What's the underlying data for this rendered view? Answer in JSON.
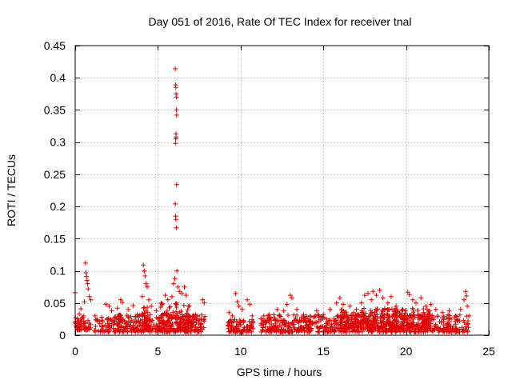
{
  "chart_data": {
    "type": "scatter",
    "title": "Day 051 of 2016, Rate Of TEC Index for receiver tnal",
    "xlabel": "GPS time / hours",
    "ylabel": "ROTI / TECUs",
    "xlim": [
      0,
      25
    ],
    "ylim": [
      0,
      0.45
    ],
    "xticks": [
      0,
      5,
      10,
      15,
      20,
      25
    ],
    "xtick_labels": [
      "0",
      "5",
      "10",
      "15",
      "20",
      "25"
    ],
    "yticks": [
      0,
      0.05,
      0.1,
      0.15,
      0.2,
      0.25,
      0.3,
      0.35,
      0.4,
      0.45
    ],
    "ytick_labels": [
      "0",
      "0.05",
      "0.1",
      "0.15",
      "0.2",
      "0.25",
      "0.3",
      "0.35",
      "0.4",
      "0.45"
    ],
    "grid": true,
    "marker": "+",
    "marker_color": "#e00000",
    "data_gaps_hours": [
      [
        7.9,
        9.2
      ],
      [
        10.8,
        11.2
      ]
    ],
    "series": [
      {
        "name": "ROTI",
        "points": [
          [
            0.0,
            0.066
          ],
          [
            0.05,
            0.018
          ],
          [
            0.15,
            0.025
          ],
          [
            0.25,
            0.033
          ],
          [
            0.35,
            0.041
          ],
          [
            0.45,
            0.028
          ],
          [
            0.55,
            0.052
          ],
          [
            0.62,
            0.112
          ],
          [
            0.65,
            0.097
          ],
          [
            0.68,
            0.091
          ],
          [
            0.72,
            0.085
          ],
          [
            0.75,
            0.08
          ],
          [
            0.78,
            0.072
          ],
          [
            0.85,
            0.06
          ],
          [
            0.95,
            0.055
          ],
          [
            1.2,
            0.03
          ],
          [
            1.6,
            0.028
          ],
          [
            1.85,
            0.048
          ],
          [
            2.05,
            0.045
          ],
          [
            2.2,
            0.038
          ],
          [
            2.55,
            0.042
          ],
          [
            2.75,
            0.055
          ],
          [
            2.85,
            0.051
          ],
          [
            3.2,
            0.04
          ],
          [
            3.5,
            0.046
          ],
          [
            3.75,
            0.032
          ],
          [
            4.05,
            0.06
          ],
          [
            4.12,
            0.109
          ],
          [
            4.18,
            0.1
          ],
          [
            4.22,
            0.092
          ],
          [
            4.28,
            0.08
          ],
          [
            4.35,
            0.075
          ],
          [
            4.45,
            0.055
          ],
          [
            4.6,
            0.045
          ],
          [
            4.9,
            0.038
          ],
          [
            5.2,
            0.05
          ],
          [
            5.45,
            0.062
          ],
          [
            5.6,
            0.055
          ],
          [
            5.85,
            0.06
          ],
          [
            5.95,
            0.08
          ],
          [
            6.02,
            0.088
          ],
          [
            6.05,
            0.414
          ],
          [
            6.07,
            0.389
          ],
          [
            6.08,
            0.385
          ],
          [
            6.1,
            0.375
          ],
          [
            6.11,
            0.37
          ],
          [
            6.12,
            0.35
          ],
          [
            6.13,
            0.342
          ],
          [
            6.09,
            0.313
          ],
          [
            6.1,
            0.308
          ],
          [
            6.08,
            0.305
          ],
          [
            6.06,
            0.298
          ],
          [
            6.13,
            0.234
          ],
          [
            6.05,
            0.204
          ],
          [
            6.07,
            0.185
          ],
          [
            6.09,
            0.18
          ],
          [
            6.11,
            0.167
          ],
          [
            6.15,
            0.1
          ],
          [
            6.2,
            0.075
          ],
          [
            6.3,
            0.068
          ],
          [
            6.45,
            0.065
          ],
          [
            6.6,
            0.075
          ],
          [
            6.7,
            0.062
          ],
          [
            6.85,
            0.045
          ],
          [
            7.4,
            0.03
          ],
          [
            7.7,
            0.055
          ],
          [
            7.8,
            0.05
          ],
          [
            9.3,
            0.035
          ],
          [
            9.5,
            0.03
          ],
          [
            9.7,
            0.065
          ],
          [
            9.8,
            0.052
          ],
          [
            9.9,
            0.045
          ],
          [
            10.1,
            0.04
          ],
          [
            10.4,
            0.055
          ],
          [
            10.55,
            0.048
          ],
          [
            10.7,
            0.03
          ],
          [
            11.4,
            0.03
          ],
          [
            11.8,
            0.028
          ],
          [
            12.2,
            0.04
          ],
          [
            12.6,
            0.038
          ],
          [
            12.8,
            0.048
          ],
          [
            13.0,
            0.062
          ],
          [
            13.1,
            0.058
          ],
          [
            13.4,
            0.04
          ],
          [
            13.8,
            0.032
          ],
          [
            14.2,
            0.03
          ],
          [
            14.6,
            0.038
          ],
          [
            15.0,
            0.032
          ],
          [
            15.4,
            0.04
          ],
          [
            15.8,
            0.05
          ],
          [
            16.0,
            0.058
          ],
          [
            16.2,
            0.048
          ],
          [
            16.6,
            0.045
          ],
          [
            17.0,
            0.04
          ],
          [
            17.3,
            0.05
          ],
          [
            17.5,
            0.062
          ],
          [
            17.7,
            0.065
          ],
          [
            17.9,
            0.055
          ],
          [
            18.0,
            0.068
          ],
          [
            18.2,
            0.062
          ],
          [
            18.4,
            0.07
          ],
          [
            18.6,
            0.058
          ],
          [
            18.9,
            0.05
          ],
          [
            19.1,
            0.06
          ],
          [
            19.4,
            0.045
          ],
          [
            19.8,
            0.04
          ],
          [
            20.1,
            0.067
          ],
          [
            20.2,
            0.063
          ],
          [
            20.4,
            0.055
          ],
          [
            20.6,
            0.05
          ],
          [
            20.9,
            0.058
          ],
          [
            21.2,
            0.045
          ],
          [
            21.5,
            0.048
          ],
          [
            21.8,
            0.04
          ],
          [
            22.2,
            0.035
          ],
          [
            22.6,
            0.038
          ],
          [
            23.0,
            0.03
          ],
          [
            23.3,
            0.04
          ],
          [
            23.5,
            0.055
          ],
          [
            23.6,
            0.068
          ],
          [
            23.65,
            0.061
          ],
          [
            23.7,
            0.045
          ]
        ],
        "dense_bands": [
          [
            0.0,
            0.95,
            0.008,
            0.03
          ],
          [
            1.0,
            7.85,
            0.005,
            0.032
          ],
          [
            4.0,
            4.6,
            0.01,
            0.045
          ],
          [
            5.1,
            6.9,
            0.01,
            0.05
          ],
          [
            9.2,
            10.8,
            0.005,
            0.025
          ],
          [
            11.2,
            23.8,
            0.005,
            0.032
          ],
          [
            16.0,
            21.5,
            0.01,
            0.042
          ]
        ]
      }
    ]
  }
}
